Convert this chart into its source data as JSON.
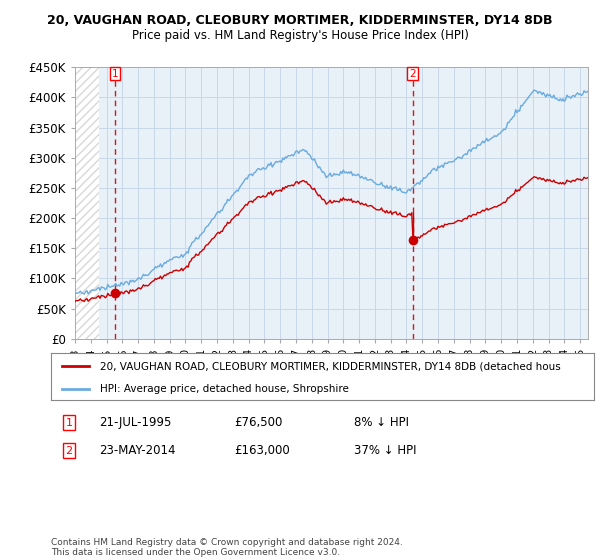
{
  "title1": "20, VAUGHAN ROAD, CLEOBURY MORTIMER, KIDDERMINSTER, DY14 8DB",
  "title2": "Price paid vs. HM Land Registry's House Price Index (HPI)",
  "ylim": [
    0,
    450000
  ],
  "yticks": [
    0,
    50000,
    100000,
    150000,
    200000,
    250000,
    300000,
    350000,
    400000,
    450000
  ],
  "ytick_labels": [
    "£0",
    "£50K",
    "£100K",
    "£150K",
    "£200K",
    "£250K",
    "£300K",
    "£350K",
    "£400K",
    "£450K"
  ],
  "xlim_start": 1993.0,
  "xlim_end": 2025.5,
  "sale1_date": 1995.55,
  "sale1_price": 76500,
  "sale2_date": 2014.39,
  "sale2_price": 163000,
  "hpi_color": "#6aabe0",
  "sale_color": "#cc0000",
  "dashed_color": "#cc0000",
  "bg_hatch_color": "#d8d8d8",
  "bg_blue_color": "#e8f0f8",
  "grid_color": "#c8d8e8",
  "legend_line1": "20, VAUGHAN ROAD, CLEOBURY MORTIMER, KIDDERMINSTER, DY14 8DB (detached hous",
  "legend_line2": "HPI: Average price, detached house, Shropshire",
  "note1_label": "1",
  "note1_date": "21-JUL-1995",
  "note1_price": "£76,500",
  "note1_hpi": "8% ↓ HPI",
  "note2_label": "2",
  "note2_date": "23-MAY-2014",
  "note2_price": "£163,000",
  "note2_hpi": "37% ↓ HPI",
  "footer": "Contains HM Land Registry data © Crown copyright and database right 2024.\nThis data is licensed under the Open Government Licence v3.0."
}
